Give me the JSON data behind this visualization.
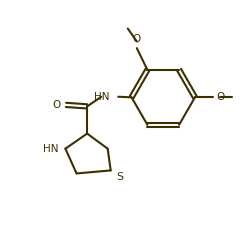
{
  "background_color": "#ffffff",
  "line_color": "#3d3000",
  "line_width": 1.5,
  "font_size": 7.5,
  "figsize": [
    2.51,
    2.43
  ],
  "dpi": 100,
  "xlim": [
    0.0,
    7.5
  ],
  "ylim": [
    0.0,
    8.0
  ]
}
